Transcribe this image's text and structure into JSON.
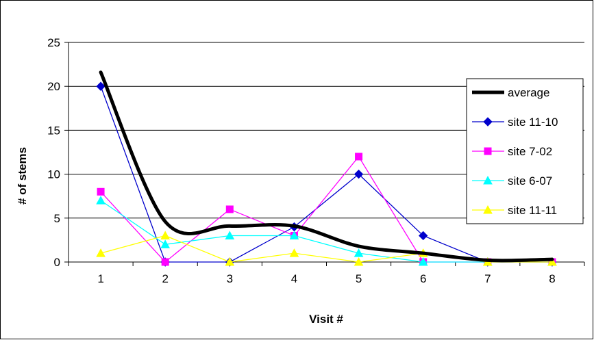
{
  "chart_data": {
    "type": "line",
    "title": "",
    "xlabel": "Visit #",
    "ylabel": "# of stems",
    "x": [
      1,
      2,
      3,
      4,
      5,
      6,
      7,
      8
    ],
    "ylim": [
      0,
      25
    ],
    "yticks": [
      0,
      5,
      10,
      15,
      20,
      25
    ],
    "grid": "horizontal",
    "legend_position": "right",
    "series": [
      {
        "name": "average",
        "color": "#000000",
        "marker": "none",
        "smooth": true,
        "values": [
          21.6,
          4.6,
          4.1,
          4.1,
          1.8,
          1.0,
          0.2,
          0.3
        ]
      },
      {
        "name": "site 11-10",
        "color": "#0000CC",
        "marker": "diamond",
        "values": [
          20,
          0,
          0,
          4,
          10,
          3,
          0,
          0
        ]
      },
      {
        "name": "site 7-02",
        "color": "#FF00FF",
        "marker": "square",
        "values": [
          8,
          0,
          6,
          3,
          12,
          0,
          0,
          0
        ]
      },
      {
        "name": "site 6-07",
        "color": "#00FFFF",
        "marker": "triangle",
        "values": [
          7,
          2,
          3,
          3,
          1,
          0,
          0,
          0
        ]
      },
      {
        "name": "site 11-11",
        "color": "#FFFF00",
        "marker": "triangle",
        "values": [
          1,
          3,
          0,
          1,
          0,
          1,
          0,
          0
        ]
      }
    ]
  }
}
